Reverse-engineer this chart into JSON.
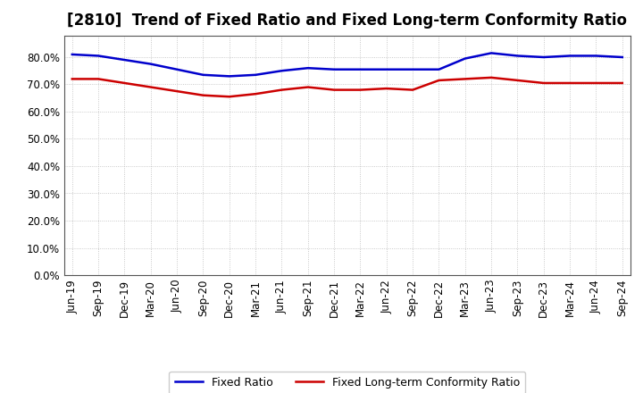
{
  "title": "[2810]  Trend of Fixed Ratio and Fixed Long-term Conformity Ratio",
  "x_labels": [
    "Jun-19",
    "Sep-19",
    "Dec-19",
    "Mar-20",
    "Jun-20",
    "Sep-20",
    "Dec-20",
    "Mar-21",
    "Jun-21",
    "Sep-21",
    "Dec-21",
    "Mar-22",
    "Jun-22",
    "Sep-22",
    "Dec-22",
    "Mar-23",
    "Jun-23",
    "Sep-23",
    "Dec-23",
    "Mar-24",
    "Jun-24",
    "Sep-24"
  ],
  "fixed_ratio": [
    81.0,
    80.5,
    79.0,
    77.5,
    75.5,
    73.5,
    73.0,
    73.5,
    75.0,
    76.0,
    75.5,
    75.5,
    75.5,
    75.5,
    75.5,
    79.5,
    81.5,
    80.5,
    80.0,
    80.5,
    80.5,
    80.0
  ],
  "fixed_lt_ratio": [
    72.0,
    72.0,
    70.5,
    69.0,
    67.5,
    66.0,
    65.5,
    66.5,
    68.0,
    69.0,
    68.0,
    68.0,
    68.5,
    68.0,
    71.5,
    72.0,
    72.5,
    71.5,
    70.5,
    70.5,
    70.5,
    70.5
  ],
  "fixed_ratio_color": "#0000CC",
  "fixed_lt_ratio_color": "#CC0000",
  "ylim_min": 0,
  "ylim_max": 88,
  "ytick_vals": [
    0,
    10,
    20,
    30,
    40,
    50,
    60,
    70,
    80
  ],
  "ytick_labels": [
    "0.0%",
    "10.0%",
    "20.0%",
    "30.0%",
    "40.0%",
    "50.0%",
    "60.0%",
    "70.0%",
    "80.0%"
  ],
  "legend_fixed_ratio": "Fixed Ratio",
  "legend_fixed_lt_ratio": "Fixed Long-term Conformity Ratio",
  "bg_color": "#FFFFFF",
  "plot_bg_color": "#FFFFFF",
  "grid_color": "#BBBBBB",
  "title_fontsize": 12,
  "axis_fontsize": 8.5,
  "line_width": 1.8
}
